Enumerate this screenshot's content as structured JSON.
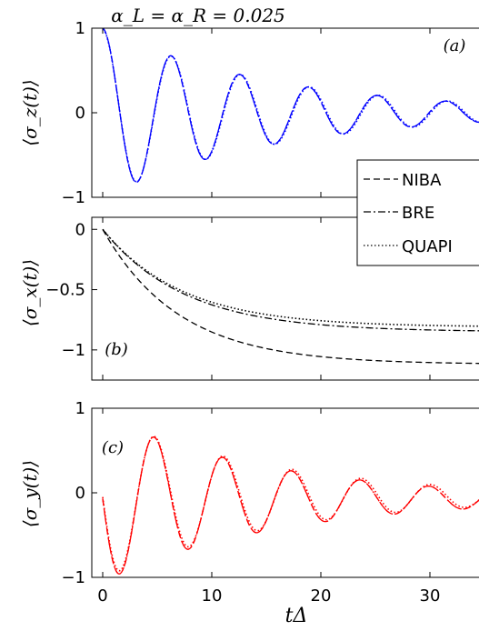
{
  "figure": {
    "title": "α_L = α_R = 0.025",
    "xlabel": "tΔ",
    "legend": {
      "placement": "right, spanning panels (a) and (b)",
      "entries": [
        {
          "label": "NIBA",
          "style": "dashed"
        },
        {
          "label": "BRE",
          "style": "dash-dot"
        },
        {
          "label": "QUAPI",
          "style": "dotted"
        }
      ]
    }
  },
  "chart_data": [
    {
      "type": "line",
      "panel_label": "(a)",
      "ylabel": "⟨σ_z(t)⟩",
      "xlim": [
        -1,
        35
      ],
      "ylim": [
        -1,
        1
      ],
      "xticks": [],
      "yticks": [
        1,
        0,
        -1
      ],
      "ytick_labels": [
        "1",
        "0",
        "−1"
      ],
      "color": "#0000ff",
      "series": [
        {
          "name": "NIBA",
          "style": "dashed",
          "model": "damped_cos",
          "params": {
            "amp": 1.0,
            "period": 6.3,
            "decay": 0.063,
            "offset": 0.0
          }
        },
        {
          "name": "BRE",
          "style": "dash-dot",
          "model": "damped_cos",
          "params": {
            "amp": 1.0,
            "period": 6.3,
            "decay": 0.063,
            "offset": 0.0
          }
        },
        {
          "name": "QUAPI",
          "style": "dotted",
          "model": "damped_cos",
          "params": {
            "amp": 0.99,
            "period": 6.33,
            "decay": 0.062,
            "offset": 0.0
          }
        }
      ]
    },
    {
      "type": "line",
      "panel_label": "(b)",
      "ylabel": "⟨σ_x(t)⟩",
      "xlim": [
        -1,
        35
      ],
      "ylim": [
        -1.25,
        0.1
      ],
      "xticks": [],
      "yticks": [
        0,
        -0.5,
        -1
      ],
      "ytick_labels": [
        "0",
        "−0.5",
        "−1"
      ],
      "color": "#000000",
      "series": [
        {
          "name": "NIBA",
          "style": "dashed",
          "model": "exp_rise",
          "params": {
            "final": -1.12,
            "tau": 7.0
          }
        },
        {
          "name": "BRE",
          "style": "dash-dot",
          "model": "exp_rise",
          "params": {
            "final": -0.85,
            "tau": 7.5
          }
        },
        {
          "name": "QUAPI",
          "style": "dotted",
          "model": "exp_rise",
          "params": {
            "final": -0.81,
            "tau": 7.3
          }
        }
      ]
    },
    {
      "type": "line",
      "panel_label": "(c)",
      "ylabel": "⟨σ_y(t)⟩",
      "xlim": [
        -1,
        35
      ],
      "ylim": [
        -1,
        1
      ],
      "xticks": [
        0,
        10,
        20,
        30
      ],
      "xtick_labels": [
        "0",
        "10",
        "20",
        "30"
      ],
      "yticks": [
        1,
        0,
        -1
      ],
      "ytick_labels": [
        "1",
        "0",
        "−1"
      ],
      "color": "#ff0000",
      "series": [
        {
          "name": "NIBA",
          "style": "dashed",
          "model": "damped_sin",
          "params": {
            "amp": -0.98,
            "period": 6.3,
            "decay": 0.063,
            "offset": -0.07
          }
        },
        {
          "name": "BRE",
          "style": "dash-dot",
          "model": "damped_sin",
          "params": {
            "amp": -0.98,
            "period": 6.3,
            "decay": 0.063,
            "offset": -0.07
          }
        },
        {
          "name": "QUAPI",
          "style": "dotted",
          "model": "damped_sin",
          "params": {
            "amp": -0.96,
            "period": 6.33,
            "decay": 0.062,
            "offset": -0.05
          }
        }
      ]
    }
  ]
}
